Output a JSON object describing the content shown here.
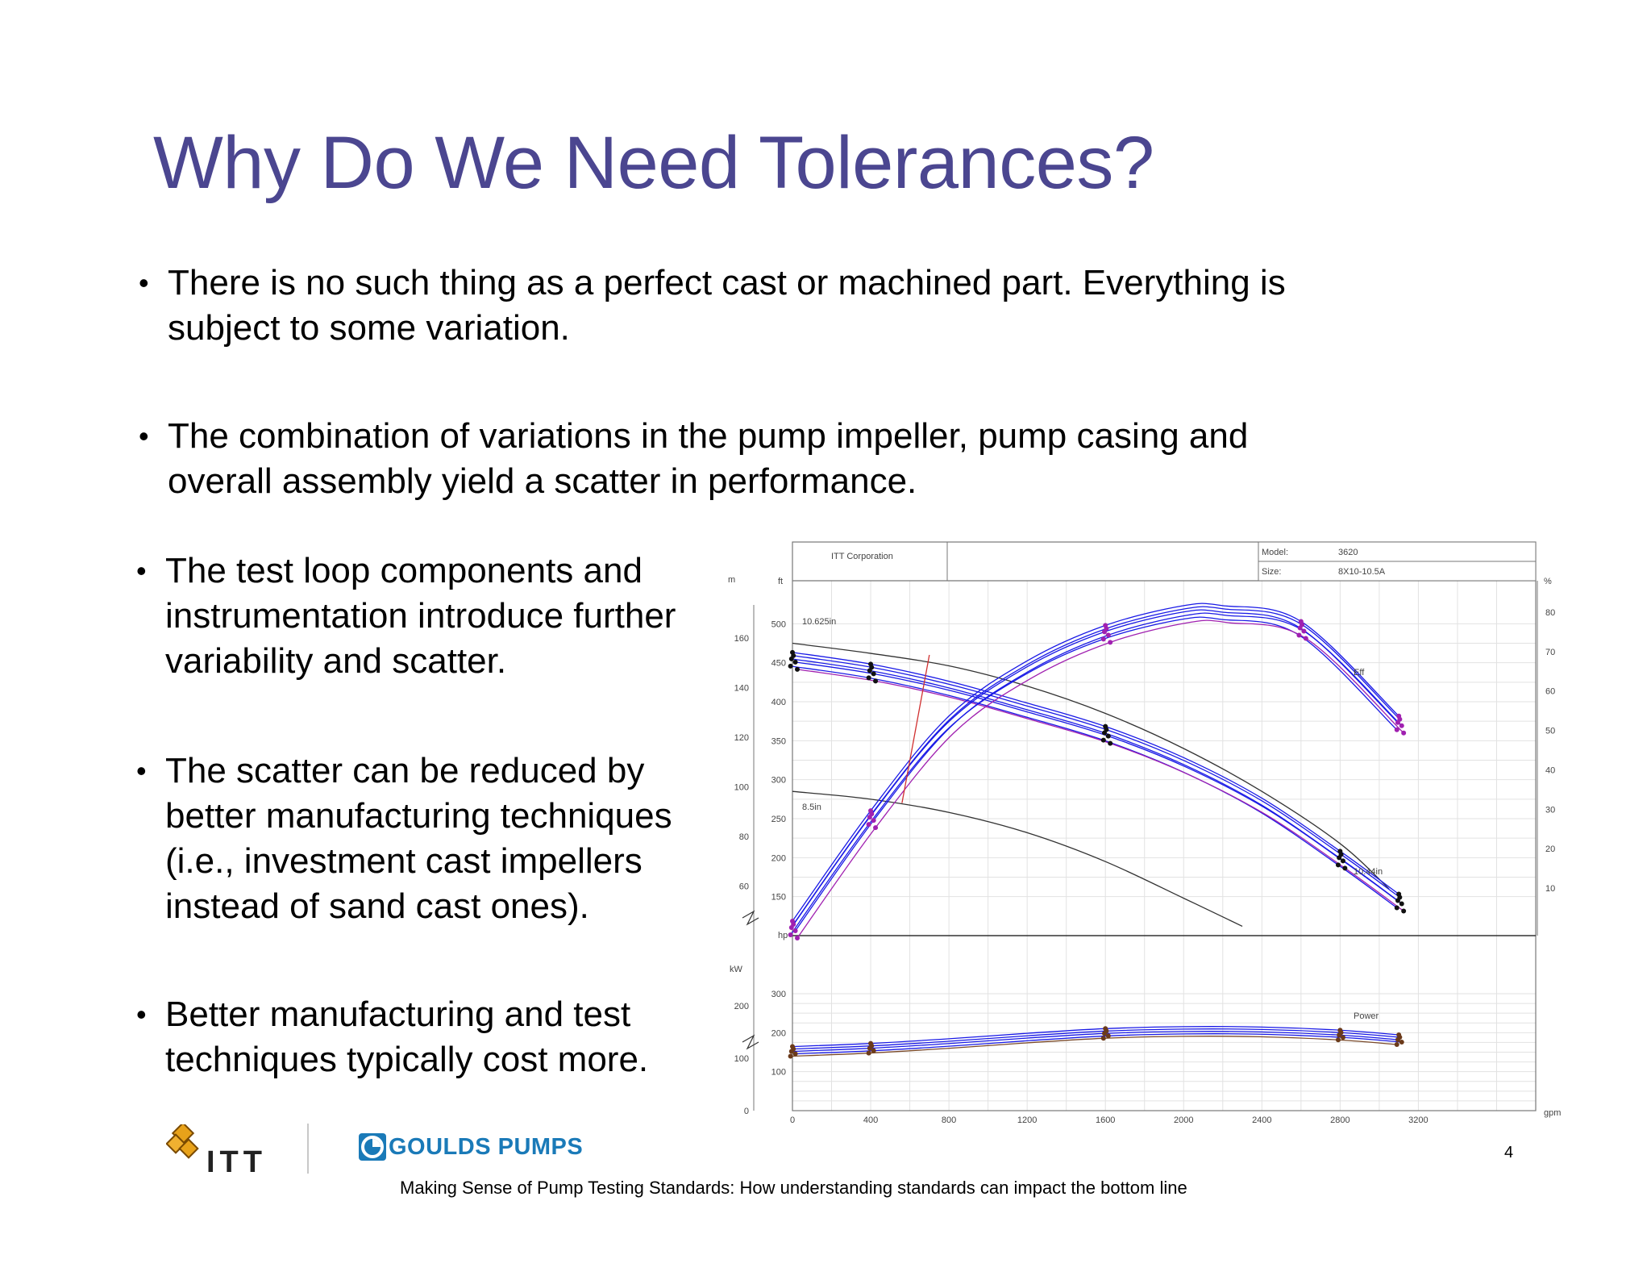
{
  "slide": {
    "title": "Why Do We Need Tolerances?",
    "bullets": [
      [
        "There is no such thing as a perfect cast or machined part. Everything is",
        "subject to some variation."
      ],
      [
        "The combination of variations in the pump impeller, pump casing and",
        "overall assembly yield a scatter in performance."
      ],
      [
        "The test loop components  and",
        "instrumentation introduce further",
        "variability and scatter."
      ],
      [
        "The scatter can be reduced by",
        "better manufacturing techniques",
        "(i.e., investment cast impellers",
        "instead of sand cast ones)."
      ],
      [
        "Better manufacturing  and test",
        "techniques typically cost more."
      ]
    ],
    "bullet_symbol": "•",
    "page_number": "4",
    "footer": "Making Sense of Pump Testing Standards: How understanding standards can impact the bottom line",
    "logos": {
      "itt_text": "ITT",
      "goulds_text": "GOULDS PUMPS",
      "itt_color": "#e8a21a",
      "goulds_color": "#1a7ab8"
    },
    "colors": {
      "title": "#4b4690",
      "curve_blue": "#1a1ae6",
      "curve_purple": "#a020b0",
      "curve_brown": "#6b3a1a"
    }
  },
  "chart_data": {
    "type": "line",
    "header": {
      "company": "ITT Corporation",
      "model_label": "Model:",
      "model_value": "3620",
      "size_label": "Size:",
      "size_value": "8X10-10.5A"
    },
    "x_unit": "gpm",
    "x_ticks": [
      0,
      400,
      800,
      1200,
      1600,
      2000,
      2400,
      2800,
      3200
    ],
    "head_ft_unit": "ft",
    "head_ft_ticks": [
      150,
      200,
      250,
      300,
      350,
      400,
      450,
      500
    ],
    "head_m_unit": "m",
    "head_m_ticks": [
      60,
      80,
      100,
      120,
      140,
      160
    ],
    "eff_unit": "%",
    "eff_ticks": [
      10,
      20,
      30,
      40,
      50,
      60,
      70,
      80
    ],
    "power_hp_unit": "hp",
    "power_hp_ticks": [
      100,
      200,
      300
    ],
    "power_kw_unit": "kW",
    "power_kw_ticks": [
      0,
      100,
      200
    ],
    "labels": {
      "d_max": "10.625in",
      "d_min": "8.5in",
      "d_test": "10.44in",
      "eff": "Eff",
      "power": "Power"
    },
    "series": [
      {
        "name": "10.625in",
        "kind": "head",
        "x": [
          0,
          400,
          800,
          1200,
          1600,
          2000,
          2400,
          2800,
          3050
        ],
        "y": [
          475,
          462,
          446,
          420,
          385,
          340,
          285,
          218,
          160
        ]
      },
      {
        "name": "8.5in",
        "kind": "head",
        "x": [
          0,
          400,
          800,
          1200,
          1600,
          2000,
          2300
        ],
        "y": [
          285,
          275,
          258,
          232,
          195,
          148,
          112
        ]
      },
      {
        "name": "10.44in",
        "kind": "head",
        "x": [
          0,
          400,
          800,
          1200,
          1600,
          2000,
          2400,
          2800,
          3100
        ],
        "y": [
          455,
          440,
          418,
          390,
          360,
          320,
          268,
          200,
          145
        ]
      },
      {
        "name": "Eff",
        "kind": "efficiency",
        "x": [
          0,
          400,
          800,
          1200,
          1600,
          2000,
          2200,
          2600,
          3100
        ],
        "y": [
          0,
          28,
          52,
          66,
          75,
          80,
          80,
          76,
          52
        ]
      },
      {
        "name": "Power",
        "kind": "power",
        "x": [
          0,
          400,
          800,
          1200,
          1600,
          2000,
          2400,
          2800,
          3100
        ],
        "y": [
          152,
          160,
          172,
          186,
          198,
          203,
          202,
          194,
          182
        ]
      }
    ],
    "grid": true,
    "legend": "none"
  }
}
